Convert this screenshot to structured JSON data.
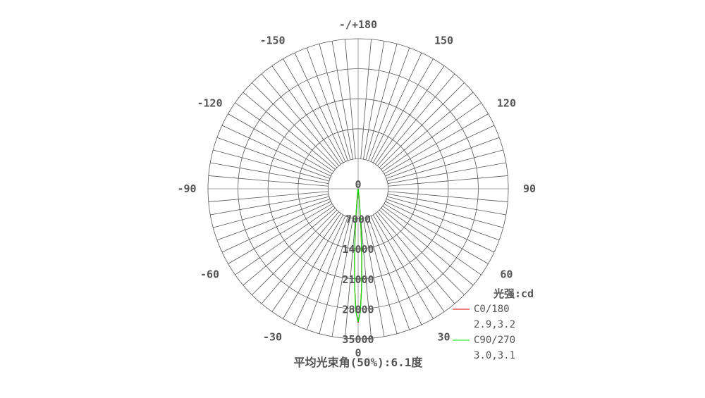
{
  "chart_data": {
    "type": "polar-line",
    "angle_labels": [
      {
        "angle": 0,
        "label": "0"
      },
      {
        "angle": 30,
        "label": "30"
      },
      {
        "angle": 60,
        "label": "60"
      },
      {
        "angle": 90,
        "label": "90"
      },
      {
        "angle": 120,
        "label": "120"
      },
      {
        "angle": 150,
        "label": "150"
      },
      {
        "angle": 180,
        "label": "-/+180"
      },
      {
        "angle": -150,
        "label": "-150"
      },
      {
        "angle": -120,
        "label": "-120"
      },
      {
        "angle": -90,
        "label": "-90"
      },
      {
        "angle": -60,
        "label": "-60"
      },
      {
        "angle": -30,
        "label": "-30"
      }
    ],
    "radial_ticks": [
      0,
      7000,
      14000,
      21000,
      28000,
      35000
    ],
    "radial_tick_labels": [
      "0",
      "7000",
      "14000",
      "21000",
      "28000",
      "35000"
    ],
    "rmax": 35000,
    "grid": true,
    "angle_grid_step_deg": 5,
    "unit_label": "光强:cd",
    "footer": "平均光束角(50%):6.1度",
    "series": [
      {
        "name": "C0/180",
        "beam": "2.9,3.2",
        "color": "#e00000",
        "angles": [
          -10,
          -8,
          -6,
          -5,
          -4,
          -3,
          -2,
          -1,
          0,
          1,
          2,
          3,
          4,
          5,
          6,
          8,
          10
        ],
        "values": [
          20,
          300,
          2100,
          4800,
          9600,
          15800,
          23100,
          28700,
          31200,
          28700,
          23100,
          15800,
          9600,
          4800,
          2100,
          300,
          20
        ]
      },
      {
        "name": "C90/270",
        "beam": "3.0,3.1",
        "color": "#00e000",
        "angles": [
          -10,
          -8,
          -6,
          -5,
          -4,
          -3,
          -2,
          -1,
          0,
          1,
          2,
          3,
          4,
          5,
          6,
          8,
          10
        ],
        "values": [
          20,
          300,
          2200,
          5000,
          9900,
          16100,
          23300,
          28800,
          31000,
          28800,
          23300,
          16100,
          9900,
          5000,
          2200,
          300,
          20
        ]
      }
    ]
  }
}
